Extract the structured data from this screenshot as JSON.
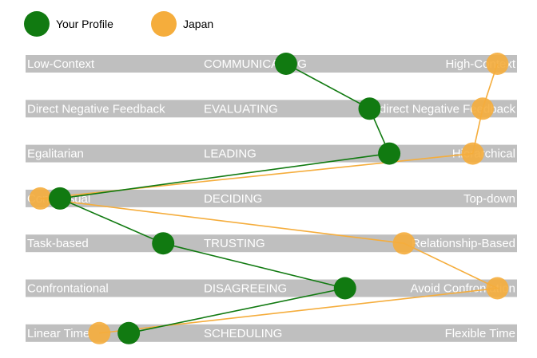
{
  "chart_data": {
    "type": "line",
    "scale": [
      0,
      100
    ],
    "legend_position": "top-left",
    "dimensions": [
      {
        "left": "Low-Context",
        "center": "COMMUNICATING",
        "right": "High-Context"
      },
      {
        "left": "Direct Negative Feedback",
        "center": "EVALUATING",
        "right": "Indirect Negative Feedback"
      },
      {
        "left": "Egalitarian",
        "center": "LEADING",
        "right": "Hierarchical"
      },
      {
        "left": "Consensual",
        "center": "DECIDING",
        "right": "Top-down"
      },
      {
        "left": "Task-based",
        "center": "TRUSTING",
        "right": "Relationship-Based"
      },
      {
        "left": "Confrontational",
        "center": "DISAGREEING",
        "right": "Avoid Confrontation"
      },
      {
        "left": "Linear Time",
        "center": "SCHEDULING",
        "right": "Flexible Time"
      }
    ],
    "series": [
      {
        "name": "Your Profile",
        "color": "#117a11",
        "values": [
          53,
          70,
          74,
          7,
          28,
          65,
          21
        ]
      },
      {
        "name": "Japan",
        "color": "#f5ad3c",
        "values": [
          96,
          93,
          91,
          3,
          77,
          96,
          15
        ]
      }
    ],
    "colors": {
      "band": "#bfbfbf",
      "label": "#ffffff"
    }
  }
}
